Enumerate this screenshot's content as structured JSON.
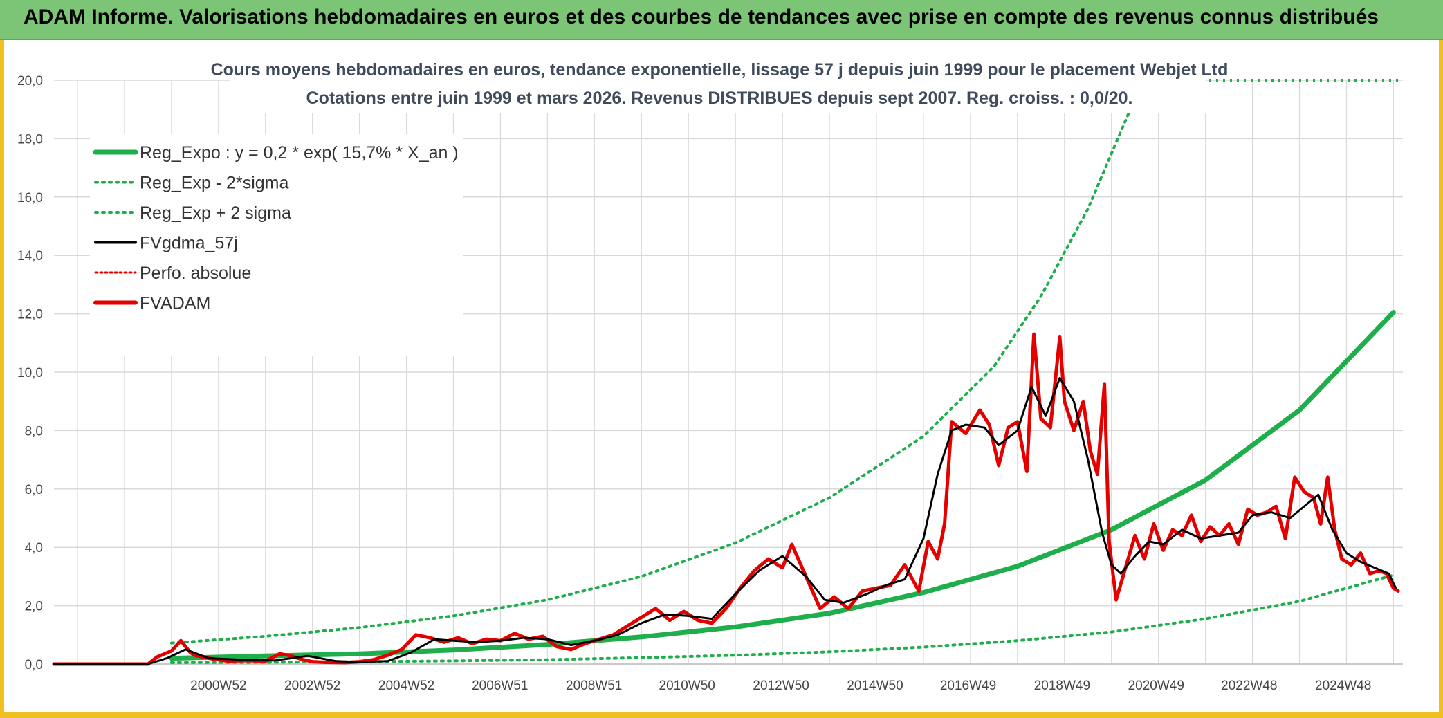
{
  "banner": {
    "title": "ADAM Informe. Valorisations hebdomadaires en euros et des courbes de tendances avec prise en compte des revenus connus distribués"
  },
  "colors": {
    "banner_bg": "#7cc576",
    "frame": "#f0c020",
    "trend": "#1fae4c",
    "price": "#e50000",
    "smooth": "#000000",
    "grid": "#d9d9d9"
  },
  "chart_data": {
    "type": "line",
    "title_lines": [
      "Cours moyens hebdomadaires en euros, tendance exponentielle, lissage 57 j depuis juin 1999 pour le placement Webjet Ltd",
      "Cotations entre juin 1999 et mars 2026.  Revenus DISTRIBUES depuis sept 2007. Reg. croiss. : 0,0/20."
    ],
    "ylim": [
      0,
      20
    ],
    "y_ticks": [
      0,
      2,
      4,
      6,
      8,
      10,
      12,
      14,
      16,
      18,
      20
    ],
    "y_tick_labels": [
      "0,0",
      "2,0",
      "4,0",
      "6,0",
      "8,0",
      "10,0",
      "12,0",
      "14,0",
      "16,0",
      "18,0",
      "20,0"
    ],
    "xlim": [
      1997.5,
      2026.2
    ],
    "x_ticks": [
      2001.0,
      2003.0,
      2005.0,
      2006.99,
      2008.99,
      2010.97,
      2012.97,
      2014.97,
      2016.95,
      2018.95,
      2020.95,
      2022.93,
      2024.93
    ],
    "x_tick_labels": [
      "2000W52",
      "2002W52",
      "2004W52",
      "2006W51",
      "2008W51",
      "2010W50",
      "2012W50",
      "2014W50",
      "2016W49",
      "2018W49",
      "2020W49",
      "2022W48",
      "2024W48"
    ],
    "legend": [
      {
        "label": "Reg_Expo : y = 0,2 * exp( 15,7% *  X_an )",
        "style": "thick-green"
      },
      {
        "label": "Reg_Exp - 2*sigma",
        "style": "dotted-green"
      },
      {
        "label": "Reg_Exp + 2 sigma",
        "style": "dotted-green"
      },
      {
        "label": "FVgdma_57j",
        "style": "black"
      },
      {
        "label": "Perfo. absolue",
        "style": "dotted-red"
      },
      {
        "label": "FVADAM",
        "style": "thick-red"
      }
    ],
    "series": [
      {
        "name": "Reg_Expo : y = 0,2 * exp( 15,7% *  X_an )",
        "x": [
          2000.0,
          2002.0,
          2004.0,
          2006.0,
          2008.0,
          2010.0,
          2012.0,
          2014.0,
          2016.0,
          2018.0,
          2020.0,
          2022.0,
          2024.0,
          2026.0
        ],
        "y": [
          0.2,
          0.28,
          0.35,
          0.48,
          0.67,
          0.93,
          1.27,
          1.74,
          2.45,
          3.35,
          4.6,
          6.3,
          8.7,
          12.05
        ]
      },
      {
        "name": "Reg_Exp - 2*sigma",
        "x": [
          2000.0,
          2002.0,
          2004.0,
          2006.0,
          2008.0,
          2010.0,
          2012.0,
          2014.0,
          2016.0,
          2018.0,
          2020.0,
          2022.0,
          2024.0,
          2026.0
        ],
        "y": [
          0.05,
          0.06,
          0.08,
          0.11,
          0.15,
          0.22,
          0.3,
          0.42,
          0.58,
          0.8,
          1.1,
          1.55,
          2.15,
          3.05
        ]
      },
      {
        "name": "Reg_Exp + 2 sigma",
        "x": [
          2000.0,
          2002.0,
          2004.0,
          2006.0,
          2008.0,
          2010.0,
          2012.0,
          2014.0,
          2016.0,
          2017.5,
          2018.5,
          2019.5,
          2020.4
        ],
        "y": [
          0.72,
          0.95,
          1.25,
          1.65,
          2.2,
          3.0,
          4.15,
          5.7,
          7.8,
          10.2,
          12.6,
          15.6,
          19.0
        ]
      },
      {
        "name": "FVgdma_57j",
        "x": [
          1997.5,
          1999.5,
          1999.9,
          2000.3,
          2000.8,
          2001.5,
          2002.2,
          2002.9,
          2003.5,
          2004.0,
          2004.6,
          2005.1,
          2005.6,
          2006.0,
          2006.5,
          2007.0,
          2007.5,
          2008.0,
          2008.5,
          2009.0,
          2009.5,
          2010.0,
          2010.5,
          2011.0,
          2011.5,
          2012.0,
          2012.5,
          2013.0,
          2013.5,
          2013.9,
          2014.3,
          2014.8,
          2015.2,
          2015.6,
          2016.0,
          2016.3,
          2016.6,
          2016.9,
          2017.3,
          2017.6,
          2018.0,
          2018.3,
          2018.6,
          2018.9,
          2019.2,
          2019.5,
          2019.8,
          2020.0,
          2020.2,
          2020.5,
          2020.8,
          2021.1,
          2021.5,
          2021.9,
          2022.3,
          2022.7,
          2023.0,
          2023.4,
          2023.8,
          2024.1,
          2024.4,
          2024.7,
          2025.0,
          2025.3,
          2025.6,
          2025.9,
          2026.05
        ],
        "y": [
          0.0,
          0.0,
          0.2,
          0.5,
          0.2,
          0.15,
          0.12,
          0.28,
          0.1,
          0.07,
          0.1,
          0.4,
          0.85,
          0.8,
          0.75,
          0.8,
          0.9,
          0.85,
          0.65,
          0.8,
          1.0,
          1.4,
          1.7,
          1.65,
          1.55,
          2.4,
          3.2,
          3.7,
          3.0,
          2.2,
          2.1,
          2.4,
          2.7,
          2.9,
          4.3,
          6.5,
          8.0,
          8.2,
          8.1,
          7.5,
          8.0,
          9.5,
          8.5,
          9.8,
          9.0,
          7.0,
          4.5,
          3.4,
          3.1,
          3.7,
          4.2,
          4.1,
          4.6,
          4.3,
          4.4,
          4.5,
          5.1,
          5.2,
          5.0,
          5.4,
          5.8,
          4.6,
          3.8,
          3.5,
          3.3,
          3.1,
          2.6
        ]
      },
      {
        "name": "FVADAM",
        "x": [
          1997.5,
          1999.5,
          1999.7,
          2000.0,
          2000.2,
          2000.4,
          2000.5,
          2000.8,
          2001.2,
          2001.6,
          2002.0,
          2002.3,
          2002.5,
          2002.8,
          2003.0,
          2003.3,
          2003.7,
          2004.0,
          2004.3,
          2004.6,
          2004.9,
          2005.2,
          2005.5,
          2005.8,
          2006.1,
          2006.4,
          2006.7,
          2007.0,
          2007.3,
          2007.6,
          2007.9,
          2008.2,
          2008.5,
          2008.8,
          2009.1,
          2009.4,
          2009.7,
          2010.0,
          2010.3,
          2010.6,
          2010.9,
          2011.2,
          2011.5,
          2011.8,
          2012.1,
          2012.4,
          2012.7,
          2013.0,
          2013.2,
          2013.5,
          2013.8,
          2014.1,
          2014.4,
          2014.7,
          2015.0,
          2015.3,
          2015.6,
          2015.9,
          2016.1,
          2016.3,
          2016.45,
          2016.6,
          2016.9,
          2017.2,
          2017.4,
          2017.6,
          2017.8,
          2018.0,
          2018.2,
          2018.35,
          2018.5,
          2018.7,
          2018.9,
          2019.0,
          2019.2,
          2019.4,
          2019.55,
          2019.7,
          2019.85,
          2019.95,
          2020.1,
          2020.3,
          2020.5,
          2020.7,
          2020.9,
          2021.1,
          2021.3,
          2021.5,
          2021.7,
          2021.9,
          2022.1,
          2022.3,
          2022.5,
          2022.7,
          2022.9,
          2023.1,
          2023.3,
          2023.5,
          2023.7,
          2023.9,
          2024.1,
          2024.3,
          2024.45,
          2024.6,
          2024.75,
          2024.9,
          2025.1,
          2025.3,
          2025.5,
          2025.7,
          2025.85,
          2026.0,
          2026.1
        ],
        "y": [
          0.0,
          0.0,
          0.25,
          0.45,
          0.8,
          0.4,
          0.3,
          0.2,
          0.1,
          0.12,
          0.1,
          0.35,
          0.3,
          0.15,
          0.08,
          0.06,
          0.05,
          0.08,
          0.15,
          0.3,
          0.5,
          1.0,
          0.9,
          0.75,
          0.9,
          0.7,
          0.85,
          0.8,
          1.05,
          0.85,
          0.95,
          0.6,
          0.5,
          0.7,
          0.85,
          1.0,
          1.3,
          1.6,
          1.9,
          1.5,
          1.8,
          1.5,
          1.4,
          1.9,
          2.6,
          3.2,
          3.6,
          3.3,
          4.1,
          3.0,
          1.9,
          2.3,
          1.9,
          2.5,
          2.6,
          2.7,
          3.4,
          2.5,
          4.2,
          3.6,
          4.8,
          8.3,
          7.9,
          8.7,
          8.2,
          6.8,
          8.1,
          8.3,
          6.6,
          11.3,
          8.4,
          8.1,
          11.2,
          9.0,
          8.0,
          9.0,
          7.3,
          6.5,
          9.6,
          4.2,
          2.2,
          3.3,
          4.4,
          3.6,
          4.8,
          3.9,
          4.6,
          4.4,
          5.1,
          4.2,
          4.7,
          4.4,
          4.8,
          4.1,
          5.3,
          5.1,
          5.2,
          5.4,
          4.3,
          6.4,
          5.9,
          5.7,
          4.8,
          6.4,
          4.6,
          3.6,
          3.4,
          3.8,
          3.1,
          3.2,
          3.1,
          2.6,
          2.5
        ]
      }
    ]
  }
}
